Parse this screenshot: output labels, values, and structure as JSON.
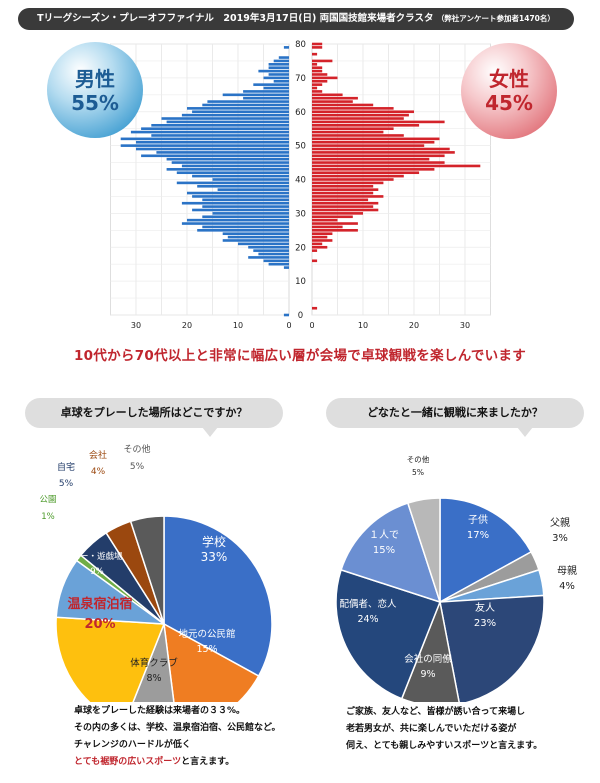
{
  "header": {
    "title": "Tリーグシーズン・プレーオフファイナル　2019年3月17日(日) 両国国技館来場者クラスタ",
    "note": "（弊社アンケート参加者1470名）"
  },
  "gender": {
    "male_label": "男性",
    "male_pct": "55%",
    "female_label": "女性",
    "female_pct": "45%"
  },
  "tagline": "10代から70代以上と非常に幅広い層が会場で卓球観戦を楽しんでいます",
  "q1": {
    "question": "卓球をプレーした場所はどこですか？",
    "note_lines": [
      "卓球をプレーした経験は来場者の３３%。",
      "その内の多くは、学校、温泉宿泊宿、公民館など。",
      "チャレンジのハードルが低く"
    ],
    "note_red": "とても裾野の広いスポーツ",
    "note_tail": "と言えます。"
  },
  "q2": {
    "question": "どなたと一緒に観戦に来ましたか？",
    "note_lines": [
      "ご家族、友人など、皆様が誘い合って来場し",
      "老若男女が、共に楽しんでいただける姿が",
      "伺え、とても親しみやすいスポーツと言えます。"
    ]
  },
  "chart_data": [
    {
      "type": "bar",
      "orientation": "horizontal-pyramid",
      "title": "",
      "xlabel": "",
      "ylabel": "",
      "y": [
        80,
        79,
        78,
        77,
        76,
        75,
        74,
        73,
        72,
        71,
        70,
        69,
        68,
        67,
        66,
        65,
        64,
        63,
        62,
        61,
        60,
        59,
        58,
        57,
        56,
        55,
        54,
        53,
        52,
        51,
        50,
        49,
        48,
        47,
        46,
        45,
        44,
        43,
        42,
        41,
        40,
        39,
        38,
        37,
        36,
        35,
        34,
        33,
        32,
        31,
        30,
        29,
        28,
        27,
        26,
        25,
        24,
        23,
        22,
        21,
        20,
        19,
        18,
        17,
        16,
        15,
        14,
        13,
        12,
        11,
        10,
        9,
        8,
        7,
        6,
        5,
        4,
        3,
        2,
        1,
        0
      ],
      "y_ticks": [
        0,
        10,
        20,
        30,
        40,
        50,
        60,
        70,
        80
      ],
      "x_ticks": [
        30,
        20,
        10,
        0
      ],
      "male_xlim": [
        0,
        35
      ],
      "female_xlim": [
        0,
        35
      ],
      "series": [
        {
          "name": "男性",
          "color": "#2a73c6",
          "values": [
            0,
            1,
            0,
            0,
            2,
            3,
            4,
            4,
            6,
            4,
            5,
            3,
            7,
            5,
            9,
            13,
            9,
            16,
            17,
            20,
            19,
            21,
            25,
            24,
            27,
            29,
            31,
            27,
            33,
            30,
            33,
            30,
            26,
            29,
            24,
            23,
            21,
            24,
            22,
            19,
            15,
            22,
            18,
            14,
            20,
            19,
            17,
            21,
            17,
            19,
            15,
            17,
            20,
            21,
            17,
            18,
            13,
            12,
            13,
            10,
            8,
            7,
            6,
            8,
            5,
            4,
            1,
            0,
            0,
            0,
            0,
            0,
            0,
            0,
            0,
            0,
            0,
            0,
            0,
            0,
            1
          ]
        },
        {
          "name": "女性",
          "color": "#d4232a",
          "values": [
            2,
            2,
            0,
            1,
            0,
            4,
            1,
            2,
            2,
            3,
            5,
            3,
            2,
            1,
            2,
            6,
            9,
            8,
            12,
            16,
            20,
            19,
            18,
            26,
            21,
            16,
            14,
            18,
            25,
            24,
            22,
            27,
            28,
            26,
            23,
            26,
            33,
            24,
            21,
            18,
            16,
            14,
            12,
            13,
            12,
            14,
            11,
            13,
            12,
            13,
            10,
            8,
            5,
            9,
            6,
            9,
            4,
            3,
            4,
            2,
            3,
            1,
            0,
            0,
            1,
            0,
            0,
            0,
            0,
            0,
            0,
            0,
            0,
            0,
            0,
            0,
            0,
            0,
            1,
            0,
            0
          ]
        }
      ]
    },
    {
      "type": "pie",
      "title": "卓球をプレーした場所はどこですか？",
      "labels": [
        "学校",
        "地元の公民館",
        "体育クラブ",
        "温泉宿泊宿",
        "バー・遊戯場",
        "公園",
        "自宅",
        "会社",
        "その他"
      ],
      "values": [
        33,
        15,
        8,
        20,
        9,
        1,
        5,
        4,
        5
      ],
      "value_labels": [
        "33%",
        "15%",
        "8%",
        "20%",
        "9%",
        "1%",
        "5%",
        "4%",
        "5%"
      ],
      "colors": [
        "#3a6fc7",
        "#ef7d22",
        "#9c9c9c",
        "#fec00e",
        "#6aa2d8",
        "#70ad47",
        "#233d6a",
        "#9b480f",
        "#5a5a5a"
      ]
    },
    {
      "type": "pie",
      "title": "どなたと一緒に観戦に来ましたか？",
      "labels": [
        "子供",
        "父親",
        "母親",
        "友人",
        "会社の同僚",
        "配偶者、恋人",
        "１人で",
        "その他"
      ],
      "values": [
        17,
        3,
        4,
        23,
        9,
        24,
        15,
        5
      ],
      "value_labels": [
        "17%",
        "3%",
        "4%",
        "23%",
        "9%",
        "24%",
        "15%",
        "5%"
      ],
      "colors": [
        "#3a6fc7",
        "#9c9c9c",
        "#6aa2d8",
        "#2c4778",
        "#5a5a5a",
        "#24477c",
        "#6b8fd2",
        "#b8b8b8"
      ]
    }
  ]
}
